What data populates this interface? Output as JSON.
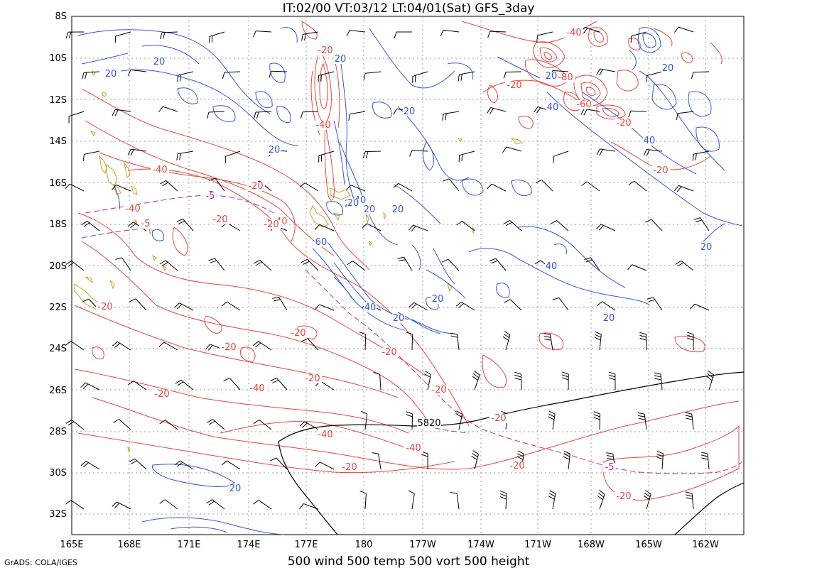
{
  "title": "IT:02/00 VT:03/12 LT:04/01(Sat) GFS_3day",
  "bottom_title": "500 wind 500 temp 500 vort 500 height",
  "credit": "GrADS: COLA/IGES",
  "map": {
    "lon_labels": [
      "165E",
      "168E",
      "171E",
      "174E",
      "177E",
      "180",
      "177W",
      "174W",
      "171W",
      "168W",
      "165W",
      "162W"
    ],
    "lat_labels": [
      "8S",
      "10S",
      "12S",
      "14S",
      "16S",
      "18S",
      "20S",
      "22S",
      "24S",
      "26S",
      "28S",
      "30S",
      "32S"
    ]
  },
  "colors": {
    "vorticity_negative": "#e8453c",
    "vorticity_positive": "#3355dd",
    "temperature": "#b0309f",
    "height": "#000000",
    "coastline": "#c9a227",
    "grid": "#9a9a9a"
  },
  "contour_labels": {
    "red": [
      "-20",
      "-40",
      "-20",
      "-40",
      "-5",
      "-20",
      "-40",
      "-20",
      "-40",
      "-20",
      "-20",
      "-40",
      "-20",
      "-20",
      "-20",
      "-20",
      "-40",
      "-40",
      "-20",
      "-20",
      "-20",
      "-40",
      "-20",
      "-80",
      "-60",
      "-20",
      "-20",
      "-20",
      "-40",
      "-20"
    ],
    "blue": [
      "20",
      "20",
      "20",
      "20",
      "20",
      "20",
      "40",
      "40",
      "20",
      "20",
      "20",
      "60",
      "40",
      "20",
      "40",
      "20",
      "20",
      "20",
      "40",
      "20",
      "20",
      "20"
    ],
    "purple": [
      "-5",
      "-5",
      "-5"
    ],
    "black": [
      "5820"
    ]
  }
}
